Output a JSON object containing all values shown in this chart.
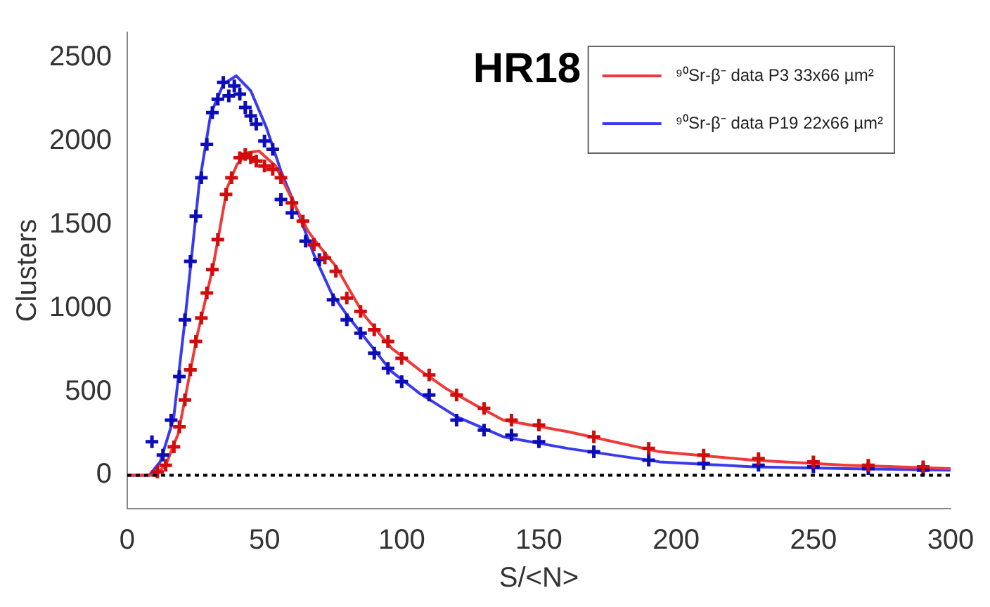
{
  "chart_data": {
    "type": "scatter",
    "xlabel": "S/<N>",
    "ylabel": "Clusters",
    "annotations": [
      "HR18"
    ],
    "xlim": [
      0,
      300
    ],
    "xticks": [
      0,
      50,
      100,
      150,
      200,
      250,
      300
    ],
    "ylim": [
      -200,
      2650
    ],
    "yticks": [
      0,
      500,
      1000,
      1500,
      2000,
      2500
    ],
    "grid": false,
    "legend": "top right",
    "marker": "cross",
    "ref_lines": [
      {
        "axis": "y",
        "value": 0,
        "color": "#000000",
        "line_style": "dotted"
      }
    ],
    "series": [
      {
        "type": "scatter",
        "color": "#d00c0c",
        "x": [
          11,
          14,
          17,
          19,
          21,
          23,
          25,
          27,
          29,
          31,
          33,
          36,
          38,
          41,
          43,
          45,
          47,
          50,
          53,
          56,
          60,
          64,
          68,
          72,
          76,
          80,
          85,
          90,
          95,
          100,
          110,
          120,
          130,
          140,
          150,
          170,
          190,
          210,
          230,
          250,
          270,
          290
        ],
        "values": [
          20,
          60,
          170,
          290,
          450,
          630,
          800,
          940,
          1090,
          1230,
          1410,
          1680,
          1780,
          1900,
          1920,
          1900,
          1880,
          1850,
          1830,
          1780,
          1630,
          1520,
          1380,
          1300,
          1220,
          1060,
          980,
          870,
          800,
          700,
          600,
          480,
          400,
          330,
          300,
          230,
          160,
          120,
          100,
          80,
          60,
          50
        ]
      },
      {
        "type": "scatter",
        "color": "#0c0cb8",
        "x": [
          9,
          13,
          16,
          19,
          21,
          23,
          25,
          27,
          29,
          31,
          33,
          35,
          37,
          39,
          41,
          43,
          45,
          47,
          50,
          53,
          56,
          60,
          65,
          70,
          75,
          80,
          85,
          90,
          95,
          100,
          110,
          120,
          130,
          140,
          150,
          170,
          190,
          210,
          230,
          250,
          270,
          290
        ],
        "values": [
          200,
          120,
          330,
          590,
          930,
          1280,
          1550,
          1780,
          1980,
          2170,
          2250,
          2350,
          2270,
          2330,
          2280,
          2200,
          2150,
          2100,
          2000,
          1950,
          1650,
          1570,
          1400,
          1290,
          1050,
          930,
          850,
          730,
          640,
          560,
          480,
          330,
          270,
          240,
          200,
          140,
          90,
          70,
          60,
          50,
          40,
          30
        ]
      },
      {
        "type": "line",
        "name": "⁹⁰Sr-β⁻ data P3 33x66 µm²",
        "color": "#f03a3a",
        "marker": "none",
        "line_style": "solid",
        "x": [
          0,
          10,
          14,
          18.6,
          25.4,
          31.3,
          36.4,
          40,
          44,
          48,
          54.1,
          60,
          65.9,
          70,
          76,
          86.2,
          96.3,
          106.5,
          116,
          126.8,
          137,
          160.6,
          194,
          228,
          262,
          300
        ],
        "values": [
          0,
          0,
          60,
          250,
          830,
          1250,
          1720,
          1860,
          1930,
          1940,
          1850,
          1650,
          1460,
          1370,
          1250,
          960,
          760,
          630,
          520,
          420,
          330,
          260,
          140,
          90,
          60,
          40
        ]
      },
      {
        "type": "line",
        "name": "⁹⁰Sr-β⁻ data P19 22x66 µm²",
        "color": "#3a3aee",
        "marker": "none",
        "line_style": "solid",
        "x": [
          0,
          8,
          12,
          16.9,
          21.1,
          26.2,
          30.4,
          35,
          39.7,
          45,
          50.7,
          56,
          62.5,
          68,
          74.4,
          80,
          86.2,
          96.3,
          106.5,
          120,
          137,
          160.6,
          194,
          228,
          262,
          300
        ],
        "values": [
          0,
          0,
          80,
          340,
          940,
          1740,
          2160,
          2340,
          2390,
          2300,
          2080,
          1820,
          1560,
          1320,
          1090,
          960,
          830,
          620,
          490,
          350,
          230,
          160,
          80,
          50,
          40,
          30
        ]
      }
    ]
  }
}
